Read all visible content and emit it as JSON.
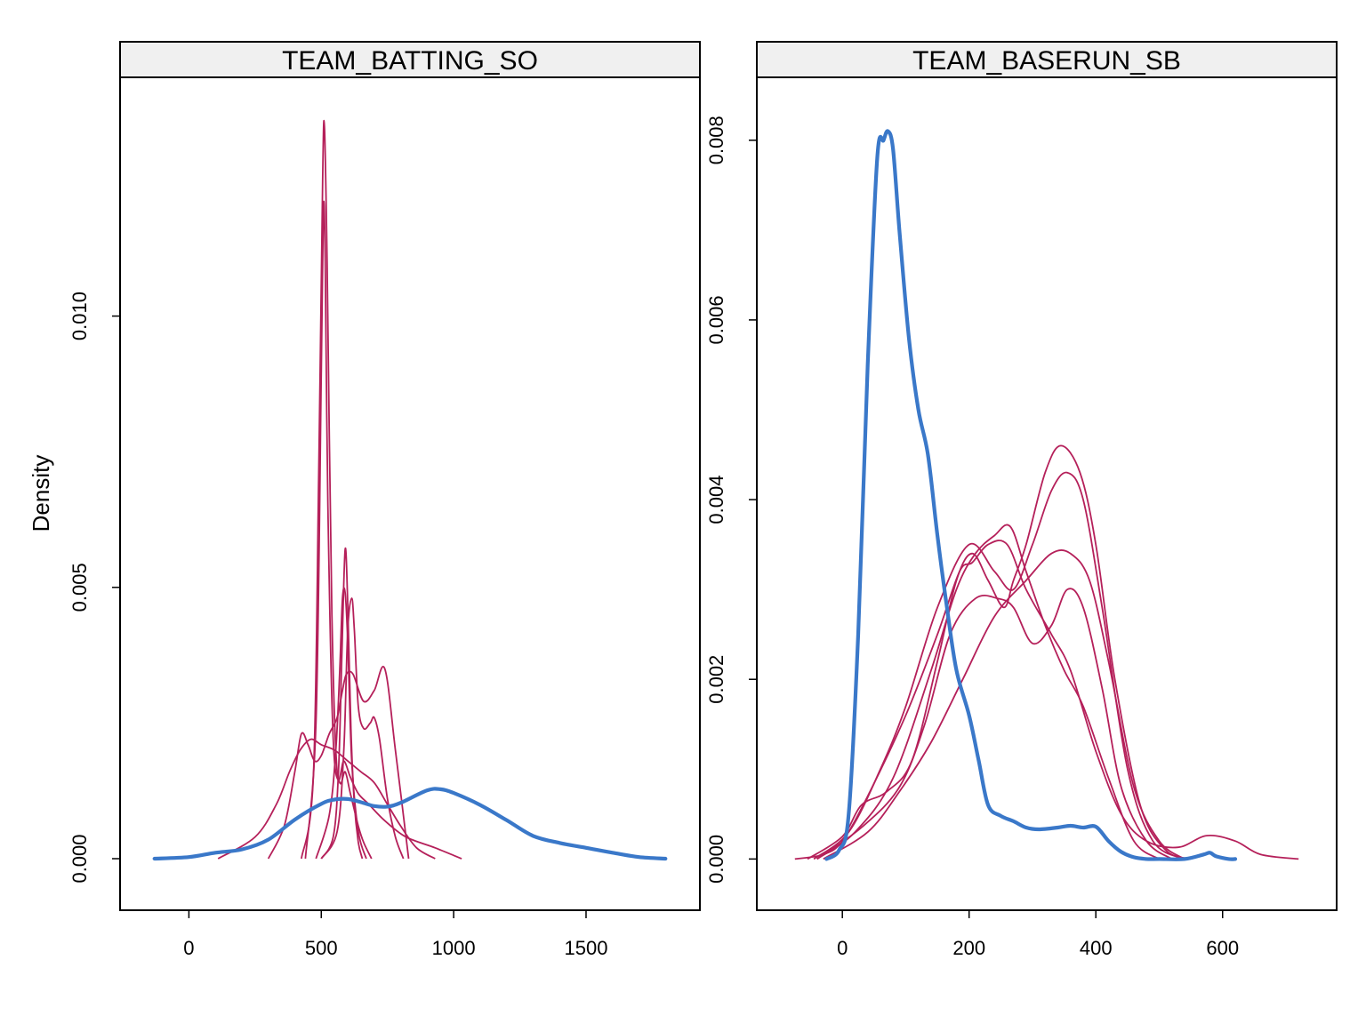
{
  "colors": {
    "observed": "#3a78c9",
    "imputed": "#b5205a",
    "strip_bg": "#f0f0f0"
  },
  "chart_data": {
    "type": "line",
    "ylabel": "Density",
    "panels": [
      {
        "title": "TEAM_BATTING_SO",
        "xticks": [
          0,
          500,
          1000,
          1500
        ],
        "yticks": [
          0.0,
          0.005,
          0.01
        ],
        "ytick_labels": [
          "0.000",
          "0.005",
          "0.010"
        ],
        "xlim": [
          -260,
          1930
        ],
        "ylim": [
          -0.00095,
          0.0144
        ],
        "series": [
          {
            "kind": "observed",
            "x": [
              -130,
              0,
              100,
              200,
              300,
              400,
              500,
              550,
              600,
              650,
              700,
              750,
              800,
              900,
              950,
              1000,
              1100,
              1200,
              1300,
              1400,
              1500,
              1600,
              1700,
              1800
            ],
            "y": [
              0,
              3e-05,
              0.00011,
              0.00017,
              0.00035,
              0.00072,
              0.00101,
              0.00109,
              0.0011,
              0.00104,
              0.00097,
              0.00096,
              0.00103,
              0.00126,
              0.00128,
              0.00121,
              0.00099,
              0.00071,
              0.00042,
              0.00029,
              0.0002,
              0.00011,
              3e-05,
              0
            ]
          },
          {
            "kind": "imputed",
            "x": [
              110,
              250,
              330,
              380,
              420,
              460,
              500,
              550,
              600,
              650,
              700,
              750,
              800,
              860,
              930
            ],
            "y": [
              0,
              0.0004,
              0.001,
              0.0016,
              0.002,
              0.0022,
              0.0021,
              0.002,
              0.0018,
              0.0016,
              0.0014,
              0.001,
              0.0006,
              0.0002,
              0
            ]
          },
          {
            "kind": "imputed",
            "x": [
              300,
              360,
              400,
              425,
              450,
              475,
              500,
              530,
              560,
              580,
              595,
              620,
              660,
              700,
              740,
              780,
              830
            ],
            "y": [
              0,
              0.0006,
              0.0016,
              0.0023,
              0.0021,
              0.0018,
              0.0019,
              0.0023,
              0.0026,
              0.0031,
              0.0034,
              0.0034,
              0.0029,
              0.0031,
              0.0035,
              0.002,
              0
            ]
          },
          {
            "kind": "imputed",
            "x": [
              425,
              470,
              490,
              505,
              512,
              522,
              540,
              560,
              585,
              610,
              640,
              680,
              740,
              820,
              930,
              1030
            ],
            "y": [
              0,
              0.0015,
              0.007,
              0.0125,
              0.0135,
              0.011,
              0.0045,
              0.0016,
              0.0018,
              0.0015,
              0.0012,
              0.001,
              0.0007,
              0.0004,
              0.0002,
              0
            ]
          },
          {
            "kind": "imputed",
            "x": [
              440,
              480,
              500,
              508,
              515,
              525,
              545,
              570,
              590,
              610,
              640,
              660,
              690
            ],
            "y": [
              0,
              0.0025,
              0.009,
              0.012,
              0.011,
              0.0065,
              0.0022,
              0.0014,
              0.0016,
              0.0012,
              0.0006,
              0.0003,
              0
            ]
          },
          {
            "kind": "imputed",
            "x": [
              480,
              530,
              555,
              570,
              580,
              590,
              600,
              615,
              640,
              670
            ],
            "y": [
              0,
              0.0008,
              0.002,
              0.0035,
              0.0048,
              0.0049,
              0.004,
              0.0018,
              0.0005,
              0
            ]
          },
          {
            "kind": "imputed",
            "x": [
              500,
              545,
              565,
              578,
              590,
              600,
              612,
              625,
              640,
              655
            ],
            "y": [
              0,
              0.0004,
              0.0016,
              0.0038,
              0.0057,
              0.0047,
              0.0024,
              0.001,
              0.0003,
              0
            ]
          },
          {
            "kind": "imputed",
            "x": [
              500,
              560,
              585,
              600,
              615,
              625,
              640,
              660,
              685,
              700,
              720,
              750,
              780,
              810
            ],
            "y": [
              0,
              0.0005,
              0.002,
              0.0042,
              0.0048,
              0.0042,
              0.0028,
              0.0024,
              0.0025,
              0.0026,
              0.0022,
              0.0011,
              0.0004,
              0
            ]
          }
        ]
      },
      {
        "title": "TEAM_BASERUN_SB",
        "xticks": [
          0,
          200,
          400,
          600
        ],
        "yticks": [
          0.0,
          0.002,
          0.004,
          0.006,
          0.008
        ],
        "ytick_labels": [
          "0.000",
          "0.002",
          "0.004",
          "0.006",
          "0.008"
        ],
        "xlim": [
          -135,
          780
        ],
        "ylim": [
          -0.00057,
          0.0087
        ],
        "series": [
          {
            "kind": "observed",
            "x": [
              -25,
              -5,
              10,
              25,
              40,
              55,
              65,
              72,
              80,
              90,
              105,
              120,
              135,
              150,
              165,
              180,
              200,
              215,
              230,
              250,
              270,
              290,
              310,
              340,
              360,
              380,
              400,
              420,
              440,
              460,
              480,
              500,
              540,
              570,
              580,
              590,
              610,
              620
            ],
            "y": [
              0,
              0.0001,
              0.0005,
              0.0025,
              0.0055,
              0.0078,
              0.008,
              0.0081,
              0.0079,
              0.007,
              0.0058,
              0.005,
              0.0045,
              0.0036,
              0.0028,
              0.0021,
              0.0016,
              0.0011,
              0.0006,
              0.00048,
              0.00042,
              0.00035,
              0.00033,
              0.00035,
              0.00037,
              0.00035,
              0.00036,
              0.0002,
              8e-05,
              2e-05,
              0,
              0,
              0,
              5e-05,
              7e-05,
              3e-05,
              0,
              0
            ]
          },
          {
            "kind": "imputed",
            "x": [
              -75,
              -30,
              0,
              40,
              100,
              150,
              185,
              205,
              230,
              260,
              290,
              330,
              360,
              400,
              440,
              480,
              530,
              575,
              620,
              660,
              720
            ],
            "y": [
              0,
              5e-05,
              0.0002,
              0.0007,
              0.0016,
              0.0025,
              0.0032,
              0.0033,
              0.0035,
              0.0035,
              0.003,
              0.0025,
              0.0021,
              0.0012,
              0.0005,
              0.0002,
              0.00013,
              0.00026,
              0.0002,
              5e-05,
              0
            ]
          },
          {
            "kind": "imputed",
            "x": [
              -55,
              0,
              30,
              70,
              110,
              150,
              180,
              205,
              230,
              255,
              270,
              290,
              320,
              345,
              375,
              400,
              430,
              470,
              510,
              550
            ],
            "y": [
              0,
              0.00025,
              0.0006,
              0.00075,
              0.0011,
              0.0022,
              0.0031,
              0.0034,
              0.0031,
              0.0028,
              0.0031,
              0.0035,
              0.0043,
              0.0046,
              0.0043,
              0.0035,
              0.002,
              0.0006,
              0.0001,
              0
            ]
          },
          {
            "kind": "imputed",
            "x": [
              -45,
              10,
              60,
              100,
              150,
              200,
              240,
              270,
              300,
              330,
              355,
              380,
              410,
              450,
              490,
              540
            ],
            "y": [
              0,
              0.0003,
              0.001,
              0.0017,
              0.0028,
              0.0035,
              0.0032,
              0.003,
              0.0035,
              0.0041,
              0.0043,
              0.004,
              0.0028,
              0.001,
              0.0002,
              0
            ]
          },
          {
            "kind": "imputed",
            "x": [
              -40,
              20,
              80,
              140,
              180,
              210,
              240,
              265,
              290,
              320,
              350,
              380,
              420,
              460,
              500
            ],
            "y": [
              0,
              0.0003,
              0.0009,
              0.0021,
              0.003,
              0.0034,
              0.0036,
              0.0037,
              0.0032,
              0.0026,
              0.0021,
              0.0017,
              0.0009,
              0.0002,
              0
            ]
          },
          {
            "kind": "imputed",
            "x": [
              -40,
              30,
              90,
              130,
              170,
              210,
              245,
              270,
              300,
              330,
              355,
              380,
              410,
              440,
              480,
              520
            ],
            "y": [
              0,
              0.00035,
              0.0008,
              0.0015,
              0.0025,
              0.0029,
              0.0029,
              0.0028,
              0.0024,
              0.0026,
              0.003,
              0.0028,
              0.0019,
              0.0008,
              0.0002,
              0
            ]
          },
          {
            "kind": "imputed",
            "x": [
              -30,
              40,
              90,
              140,
              190,
              240,
              290,
              330,
              360,
              390,
              420,
              460,
              500,
              540
            ],
            "y": [
              0,
              0.0003,
              0.00075,
              0.0013,
              0.002,
              0.0027,
              0.0031,
              0.0034,
              0.0034,
              0.0031,
              0.0022,
              0.0008,
              0.0002,
              0
            ]
          }
        ]
      }
    ]
  }
}
